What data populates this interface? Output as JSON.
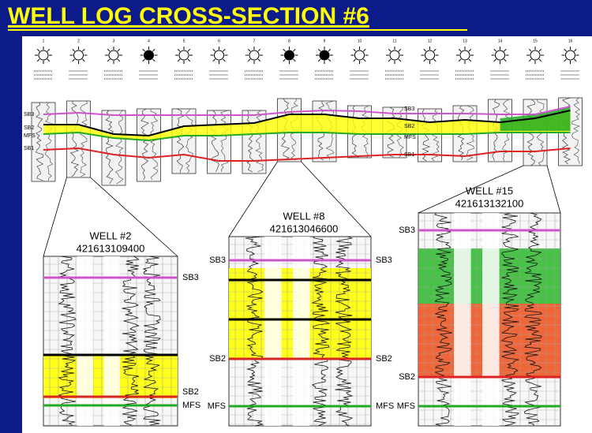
{
  "title": "WELL LOG CROSS-SECTION #6",
  "cross_section": {
    "wells": [
      "1",
      "2",
      "3",
      "4",
      "5",
      "6",
      "7",
      "8",
      "9",
      "10",
      "11",
      "12",
      "13",
      "14",
      "15",
      "16"
    ],
    "left_markers": [
      "SB3",
      "SB2",
      "MFS",
      "SB1"
    ],
    "right_markers": [
      "SB3",
      "SB2",
      "MFS",
      "SB1"
    ]
  },
  "details": [
    {
      "well": "WELL #2",
      "api": "421613109400",
      "right_markers": [
        "SB3",
        "SB2",
        "MFS"
      ]
    },
    {
      "well": "WELL #8",
      "api": "421613046600",
      "left_markers": [
        "SB3",
        "SB2",
        "MFS"
      ],
      "right_markers": [
        "SB3",
        "SB2",
        "MFS"
      ]
    },
    {
      "well": "WELL #15",
      "api": "421613132100",
      "left_markers": [
        "SB3",
        "SB2",
        "MFS"
      ]
    }
  ]
}
